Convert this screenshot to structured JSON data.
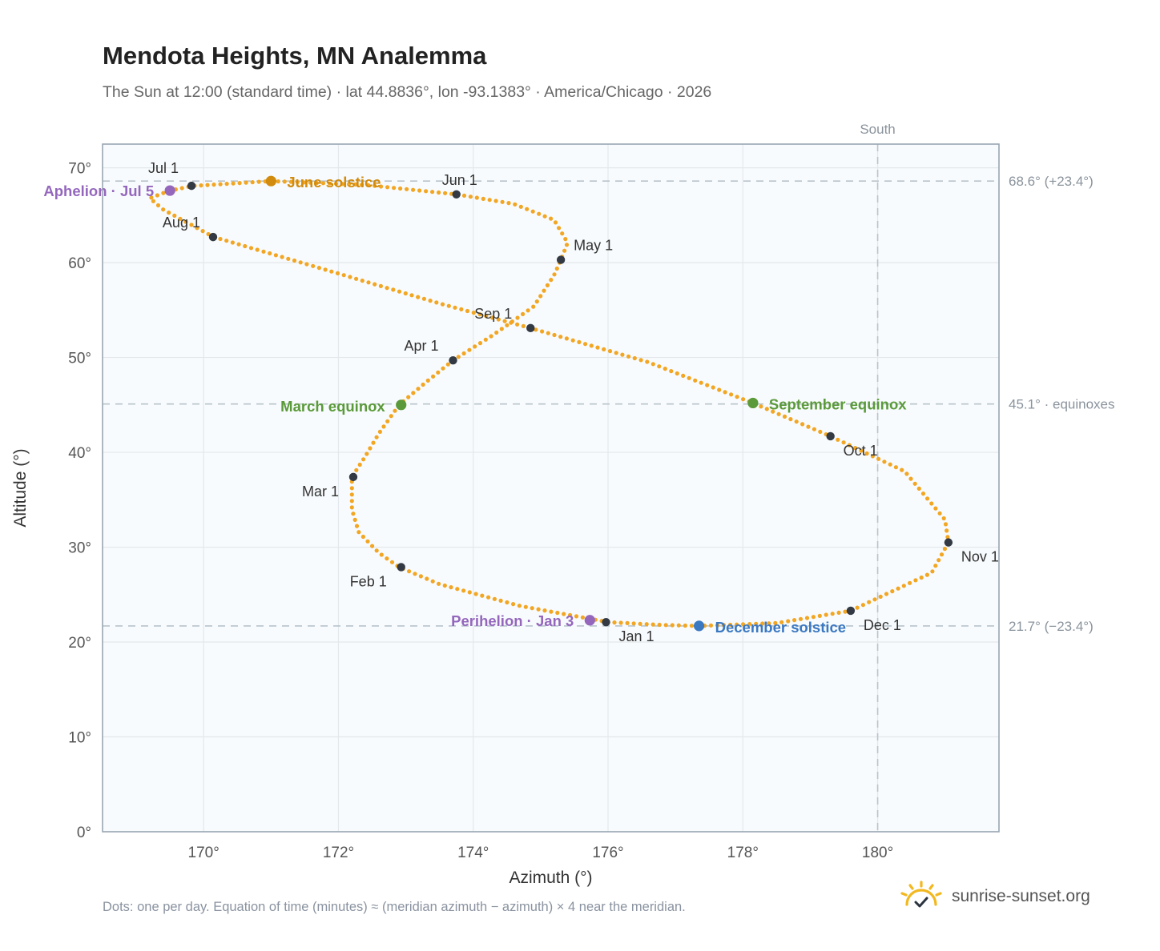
{
  "header": {
    "title": "Mendota Heights, MN Analemma",
    "subtitle": "The Sun at 12:00 (standard time) · lat 44.8836°, lon -93.1383° · America/Chicago · 2026"
  },
  "footer": {
    "note": "Dots: one per day. Equation of time (minutes) ≈ (meridian azimuth − azimuth) × 4 near the meridian.",
    "brand": "sunrise-sunset.org",
    "brand_icon": "sun-logo-icon"
  },
  "colors": {
    "path": "#f2a623",
    "month_marker": "#333a44",
    "solstice_june": "#d18b0e",
    "solstice_december": "#3a78c2",
    "equinox": "#5a9a3a",
    "apsis": "#9467bd",
    "plot_bg": "#f8fbfd",
    "grid": "#e3e8ec",
    "refline": "#b8c4cc"
  },
  "chart_data": {
    "type": "scatter",
    "xlabel": "Azimuth (°)",
    "ylabel": "Altitude (°)",
    "xlim": [
      168.5,
      181.8
    ],
    "ylim": [
      0,
      72.5
    ],
    "xticks": [
      {
        "value": 170,
        "label": "170°"
      },
      {
        "value": 172,
        "label": "172°"
      },
      {
        "value": 174,
        "label": "174°"
      },
      {
        "value": 176,
        "label": "176°"
      },
      {
        "value": 178,
        "label": "178°"
      },
      {
        "value": 180,
        "label": "180°"
      }
    ],
    "yticks": [
      {
        "value": 0,
        "label": "0°"
      },
      {
        "value": 10,
        "label": "10°"
      },
      {
        "value": 20,
        "label": "20°"
      },
      {
        "value": 30,
        "label": "30°"
      },
      {
        "value": 40,
        "label": "40°"
      },
      {
        "value": 50,
        "label": "50°"
      },
      {
        "value": 60,
        "label": "60°"
      },
      {
        "value": 70,
        "label": "70°"
      }
    ],
    "reference_lines": [
      {
        "axis": "y",
        "value": 68.6,
        "label": "68.6° (+23.4°)"
      },
      {
        "axis": "y",
        "value": 45.1,
        "label": "45.1° · equinoxes"
      },
      {
        "axis": "y",
        "value": 21.7,
        "label": "21.7° (−23.4°)"
      },
      {
        "axis": "x",
        "value": 180,
        "label": "South"
      }
    ],
    "analemma_path": [
      [
        176.0,
        22.1
      ],
      [
        174.7,
        23.8
      ],
      [
        173.5,
        26.1
      ],
      [
        172.9,
        27.9
      ],
      [
        172.6,
        29.4
      ],
      [
        172.3,
        31.6
      ],
      [
        172.2,
        34.0
      ],
      [
        172.2,
        37.4
      ],
      [
        172.4,
        39.6
      ],
      [
        172.6,
        42.0
      ],
      [
        172.9,
        45.0
      ],
      [
        173.3,
        47.4
      ],
      [
        173.7,
        49.7
      ],
      [
        174.3,
        52.4
      ],
      [
        174.9,
        55.4
      ],
      [
        175.2,
        58.7
      ],
      [
        175.3,
        60.3
      ],
      [
        175.4,
        62.1
      ],
      [
        175.2,
        64.5
      ],
      [
        174.6,
        66.2
      ],
      [
        173.75,
        67.2
      ],
      [
        172.4,
        68.2
      ],
      [
        171.0,
        68.6
      ],
      [
        169.85,
        68.1
      ],
      [
        169.5,
        67.6
      ],
      [
        169.2,
        66.8
      ],
      [
        169.4,
        65.6
      ],
      [
        170.15,
        62.7
      ],
      [
        171.5,
        59.9
      ],
      [
        173.5,
        55.7
      ],
      [
        174.85,
        53.1
      ],
      [
        176.6,
        49.5
      ],
      [
        178.15,
        45.2
      ],
      [
        179.3,
        41.7
      ],
      [
        180.4,
        38.0
      ],
      [
        181.0,
        32.9
      ],
      [
        181.05,
        30.5
      ],
      [
        180.8,
        27.3
      ],
      [
        179.6,
        23.3
      ],
      [
        178.5,
        22.0
      ],
      [
        177.35,
        21.7
      ],
      [
        176.8,
        21.8
      ],
      [
        176.0,
        22.1
      ]
    ],
    "month_markers": [
      {
        "label": "Jan 1",
        "x": 175.97,
        "y": 22.1
      },
      {
        "label": "Feb 1",
        "x": 172.93,
        "y": 27.9
      },
      {
        "label": "Mar 1",
        "x": 172.22,
        "y": 37.4
      },
      {
        "label": "Apr 1",
        "x": 173.7,
        "y": 49.7
      },
      {
        "label": "May 1",
        "x": 175.3,
        "y": 60.3
      },
      {
        "label": "Jun 1",
        "x": 173.75,
        "y": 67.2
      },
      {
        "label": "Jul 1",
        "x": 169.82,
        "y": 68.1
      },
      {
        "label": "Aug 1",
        "x": 170.14,
        "y": 62.7
      },
      {
        "label": "Sep 1",
        "x": 174.85,
        "y": 53.1
      },
      {
        "label": "Oct 1",
        "x": 179.3,
        "y": 41.7
      },
      {
        "label": "Nov 1",
        "x": 181.05,
        "y": 30.5
      },
      {
        "label": "Dec 1",
        "x": 179.6,
        "y": 23.3
      }
    ],
    "events": [
      {
        "label": "June solstice",
        "x": 171.0,
        "y": 68.6,
        "kind": "solstice_june"
      },
      {
        "label": "December solstice",
        "x": 177.35,
        "y": 21.7,
        "kind": "solstice_december"
      },
      {
        "label": "March equinox",
        "x": 172.93,
        "y": 45.0,
        "kind": "equinox"
      },
      {
        "label": "September equinox",
        "x": 178.15,
        "y": 45.2,
        "kind": "equinox"
      },
      {
        "label": "Aphelion · Jul 5",
        "x": 169.5,
        "y": 67.6,
        "kind": "apsis"
      },
      {
        "label": "Perihelion · Jan 3",
        "x": 175.73,
        "y": 22.3,
        "kind": "apsis"
      }
    ],
    "grid": true
  }
}
